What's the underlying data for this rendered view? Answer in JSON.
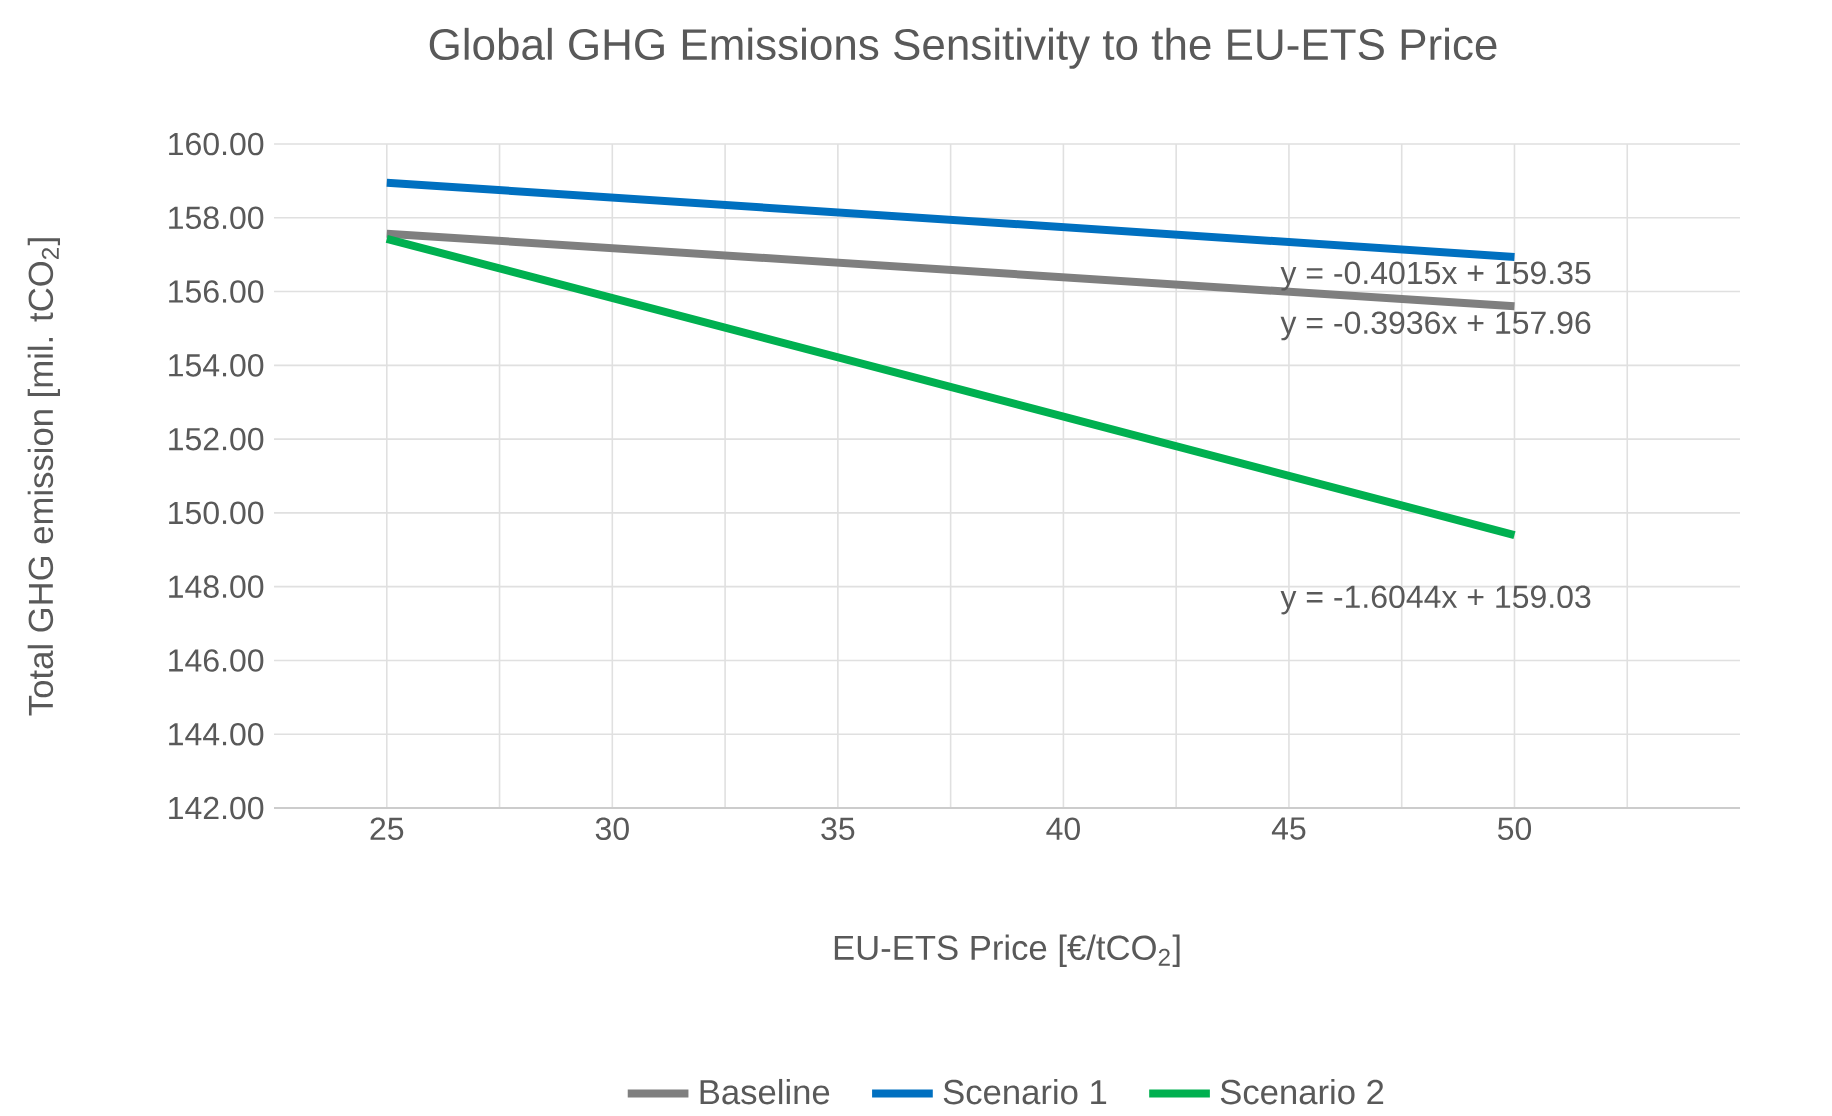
{
  "chart_data": {
    "type": "line",
    "title": "Global GHG Emissions Sensitivity to the EU-ETS Price",
    "xlabel": "EU-ETS Price [€/tCO$_{2}$]",
    "ylabel": "Total GHG emission [mil. tCO$_{2}$]",
    "x": [
      25,
      50
    ],
    "series": [
      {
        "name": "Baseline",
        "color": "#7f7f7f",
        "values": [
          157.57,
          155.6
        ]
      },
      {
        "name": "Scenario 1",
        "color": "#0070c0",
        "values": [
          158.95,
          156.94
        ]
      },
      {
        "name": "Scenario 2",
        "color": "#00b050",
        "values": [
          157.43,
          149.4
        ]
      }
    ],
    "xlim": [
      22.5,
      55
    ],
    "xticks": [
      25,
      {
        "value": 27.5,
        "label": null
      },
      30,
      {
        "value": 32.5,
        "label": null
      },
      35,
      {
        "value": 37.5,
        "label": null
      },
      40,
      {
        "value": 42.5,
        "label": null
      },
      45,
      {
        "value": 47.5,
        "label": null
      },
      50,
      {
        "value": 52.5,
        "label": null
      }
    ],
    "ylim": [
      142,
      160
    ],
    "yticks": [
      {
        "value": 142,
        "label": "142.00"
      },
      {
        "value": 144,
        "label": "144.00"
      },
      {
        "value": 146,
        "label": "146.00"
      },
      {
        "value": 148,
        "label": "148.00"
      },
      {
        "value": 150,
        "label": "150.00"
      },
      {
        "value": 152,
        "label": "152.00"
      },
      {
        "value": 154,
        "label": "154.00"
      },
      {
        "value": 156,
        "label": "156.00"
      },
      {
        "value": 158,
        "label": "158.00"
      },
      {
        "value": 160,
        "label": "160.00"
      }
    ],
    "annotations": [
      "y = -0.4015x + 159.35",
      "y = -0.3936x + 157.96",
      "y = -1.6044x + 159.03"
    ],
    "grid": true,
    "legend": "bottom",
    "marker": "none",
    "line_style": "solid"
  }
}
